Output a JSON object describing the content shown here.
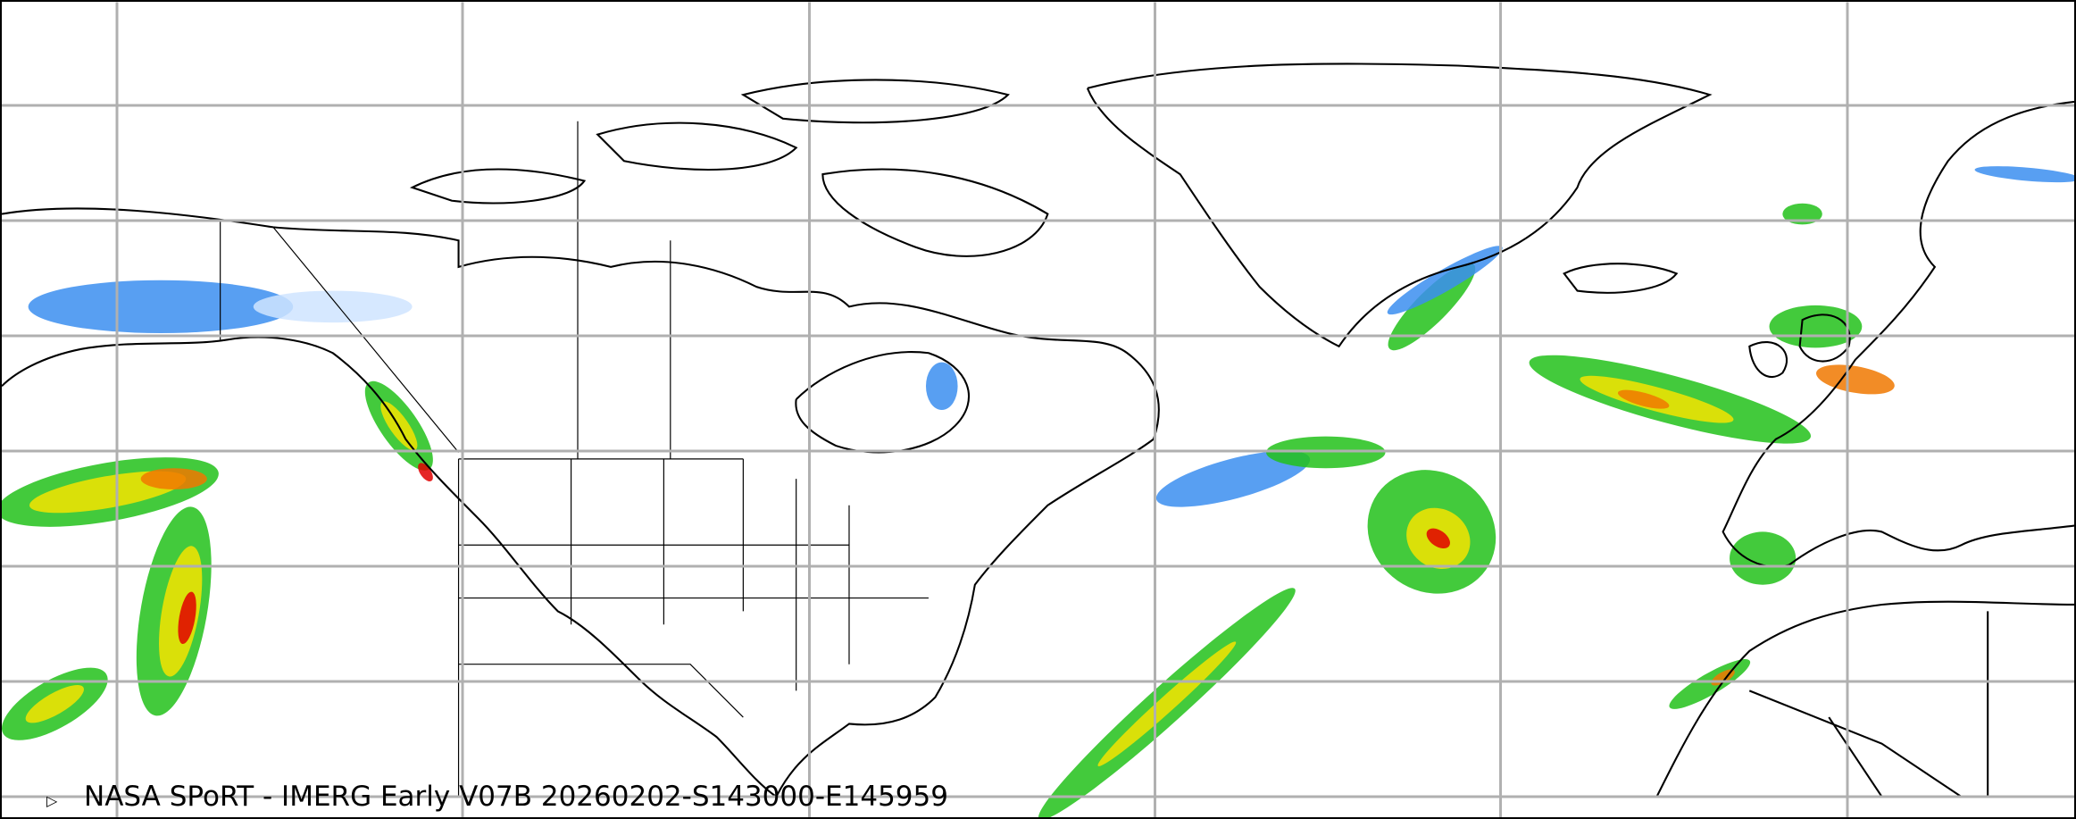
{
  "caption": "NASA SPoRT - IMERG Early V07B 20260202-S143000-E145959",
  "colors": {
    "gridline": "#b0b0b0",
    "coastline": "#000000",
    "light_precip": "#3b8ef0",
    "very_light_precip": "#cfe4ff",
    "moderate_precip": "#22c11a",
    "heavy_precip": "#f5e400",
    "very_heavy_precip": "#f07800",
    "extreme_precip": "#e00000"
  },
  "icons": {
    "marker": "triangle-marker-icon"
  }
}
